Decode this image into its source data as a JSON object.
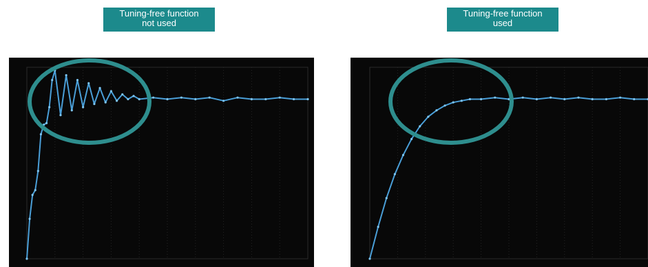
{
  "labels": {
    "left": [
      "Tuning-free function",
      "not used"
    ],
    "right": [
      "Tuning-free function",
      "used"
    ]
  },
  "colors": {
    "label_bg": "#1c8a8c",
    "label_text": "#ffffff",
    "panel_bg": "#080808",
    "trace": "#4a9fd8",
    "highlight_ring": "#2e8e8e"
  },
  "chart_data": [
    {
      "type": "line",
      "title": "",
      "xlabel": "",
      "ylabel": "",
      "grid": true,
      "xlim": [
        0,
        10
      ],
      "ylim": [
        0,
        1.2
      ],
      "series": [
        {
          "x": [
            0,
            0.1,
            0.2,
            0.3,
            0.4,
            0.5,
            0.6,
            0.7,
            0.8,
            0.9,
            1.0,
            1.2,
            1.4,
            1.6,
            1.8,
            2.0,
            2.2,
            2.4,
            2.6,
            2.8,
            3.0,
            3.2,
            3.4,
            3.6,
            3.8,
            4.0,
            4.5,
            5.0,
            5.5,
            6.0,
            6.5,
            7.0,
            7.5,
            8.0,
            8.5,
            9.0,
            9.5,
            10.0
          ],
          "y": [
            0.0,
            0.25,
            0.4,
            0.43,
            0.55,
            0.78,
            0.84,
            0.85,
            0.95,
            1.12,
            1.18,
            0.9,
            1.15,
            0.93,
            1.12,
            0.95,
            1.1,
            0.97,
            1.07,
            0.98,
            1.05,
            0.99,
            1.03,
            1.0,
            1.02,
            1.0,
            1.01,
            1.0,
            1.01,
            1.0,
            1.01,
            0.99,
            1.01,
            1.0,
            1.0,
            1.01,
            1.0,
            1.0
          ]
        }
      ]
    },
    {
      "type": "line",
      "title": "",
      "xlabel": "",
      "ylabel": "",
      "grid": true,
      "xlim": [
        0,
        10
      ],
      "ylim": [
        0,
        1.2
      ],
      "series": [
        {
          "x": [
            0,
            0.3,
            0.6,
            0.9,
            1.2,
            1.5,
            1.8,
            2.1,
            2.4,
            2.7,
            3.0,
            3.3,
            3.6,
            4.0,
            4.5,
            5.0,
            5.5,
            6.0,
            6.5,
            7.0,
            7.5,
            8.0,
            8.5,
            9.0,
            9.5,
            10.0
          ],
          "y": [
            0.0,
            0.2,
            0.38,
            0.53,
            0.65,
            0.75,
            0.83,
            0.89,
            0.93,
            0.96,
            0.98,
            0.99,
            1.0,
            1.0,
            1.01,
            1.0,
            1.01,
            1.0,
            1.01,
            1.0,
            1.01,
            1.0,
            1.0,
            1.01,
            1.0,
            1.0
          ]
        }
      ]
    }
  ]
}
